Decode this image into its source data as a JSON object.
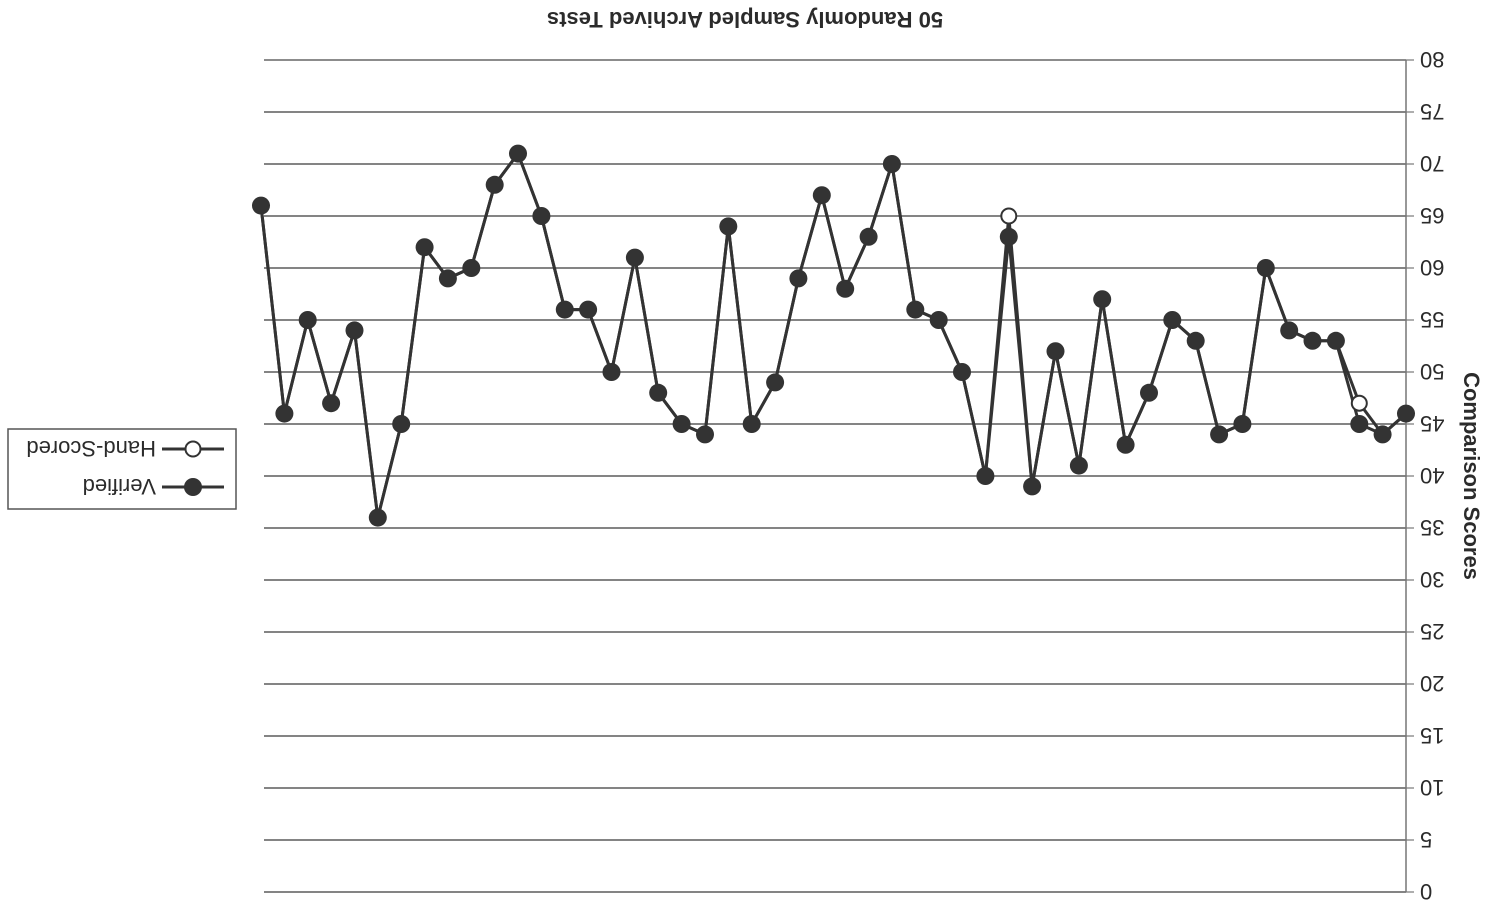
{
  "chart_data": {
    "type": "line",
    "orientation": "rotated-180",
    "title": "50 Randomly Sampled Archived Tests",
    "xlabel": "",
    "ylabel": "Comparison Scores",
    "ylim": [
      0,
      80
    ],
    "yticks": [
      0,
      5,
      10,
      15,
      20,
      25,
      30,
      35,
      40,
      45,
      50,
      55,
      60,
      65,
      70,
      75,
      80
    ],
    "x": [
      1,
      2,
      3,
      4,
      5,
      6,
      7,
      8,
      9,
      10,
      11,
      12,
      13,
      14,
      15,
      16,
      17,
      18,
      19,
      20,
      21,
      22,
      23,
      24,
      25,
      26,
      27,
      28,
      29,
      30,
      31,
      32,
      33,
      34,
      35,
      36,
      37,
      38,
      39,
      40,
      41,
      42,
      43,
      44,
      45,
      46,
      47,
      48,
      49,
      50
    ],
    "grid": true,
    "legend_position": "left",
    "series": [
      {
        "name": "Verified",
        "marker": "filled-circle",
        "color": "#333333",
        "values": [
          46,
          44,
          45,
          53,
          53,
          54,
          60,
          45,
          44,
          53,
          55,
          48,
          43,
          57,
          41,
          52,
          39,
          63,
          40,
          50,
          55,
          56,
          70,
          63,
          58,
          67,
          59,
          49,
          45,
          64,
          44,
          45,
          48,
          61,
          50,
          56,
          56,
          65,
          71,
          68,
          60,
          59,
          62,
          45,
          36,
          54,
          47,
          55,
          46,
          66
        ]
      },
      {
        "name": "Hand-Scored",
        "marker": "open-circle",
        "color": "#333333",
        "values": [
          46,
          44,
          47,
          53,
          53,
          54,
          60,
          45,
          44,
          53,
          55,
          48,
          43,
          57,
          41,
          52,
          39,
          65,
          40,
          50,
          55,
          56,
          70,
          63,
          58,
          67,
          59,
          49,
          45,
          64,
          44,
          45,
          48,
          61,
          50,
          56,
          56,
          65,
          71,
          68,
          60,
          59,
          62,
          45,
          36,
          54,
          47,
          55,
          46,
          66
        ]
      }
    ]
  }
}
